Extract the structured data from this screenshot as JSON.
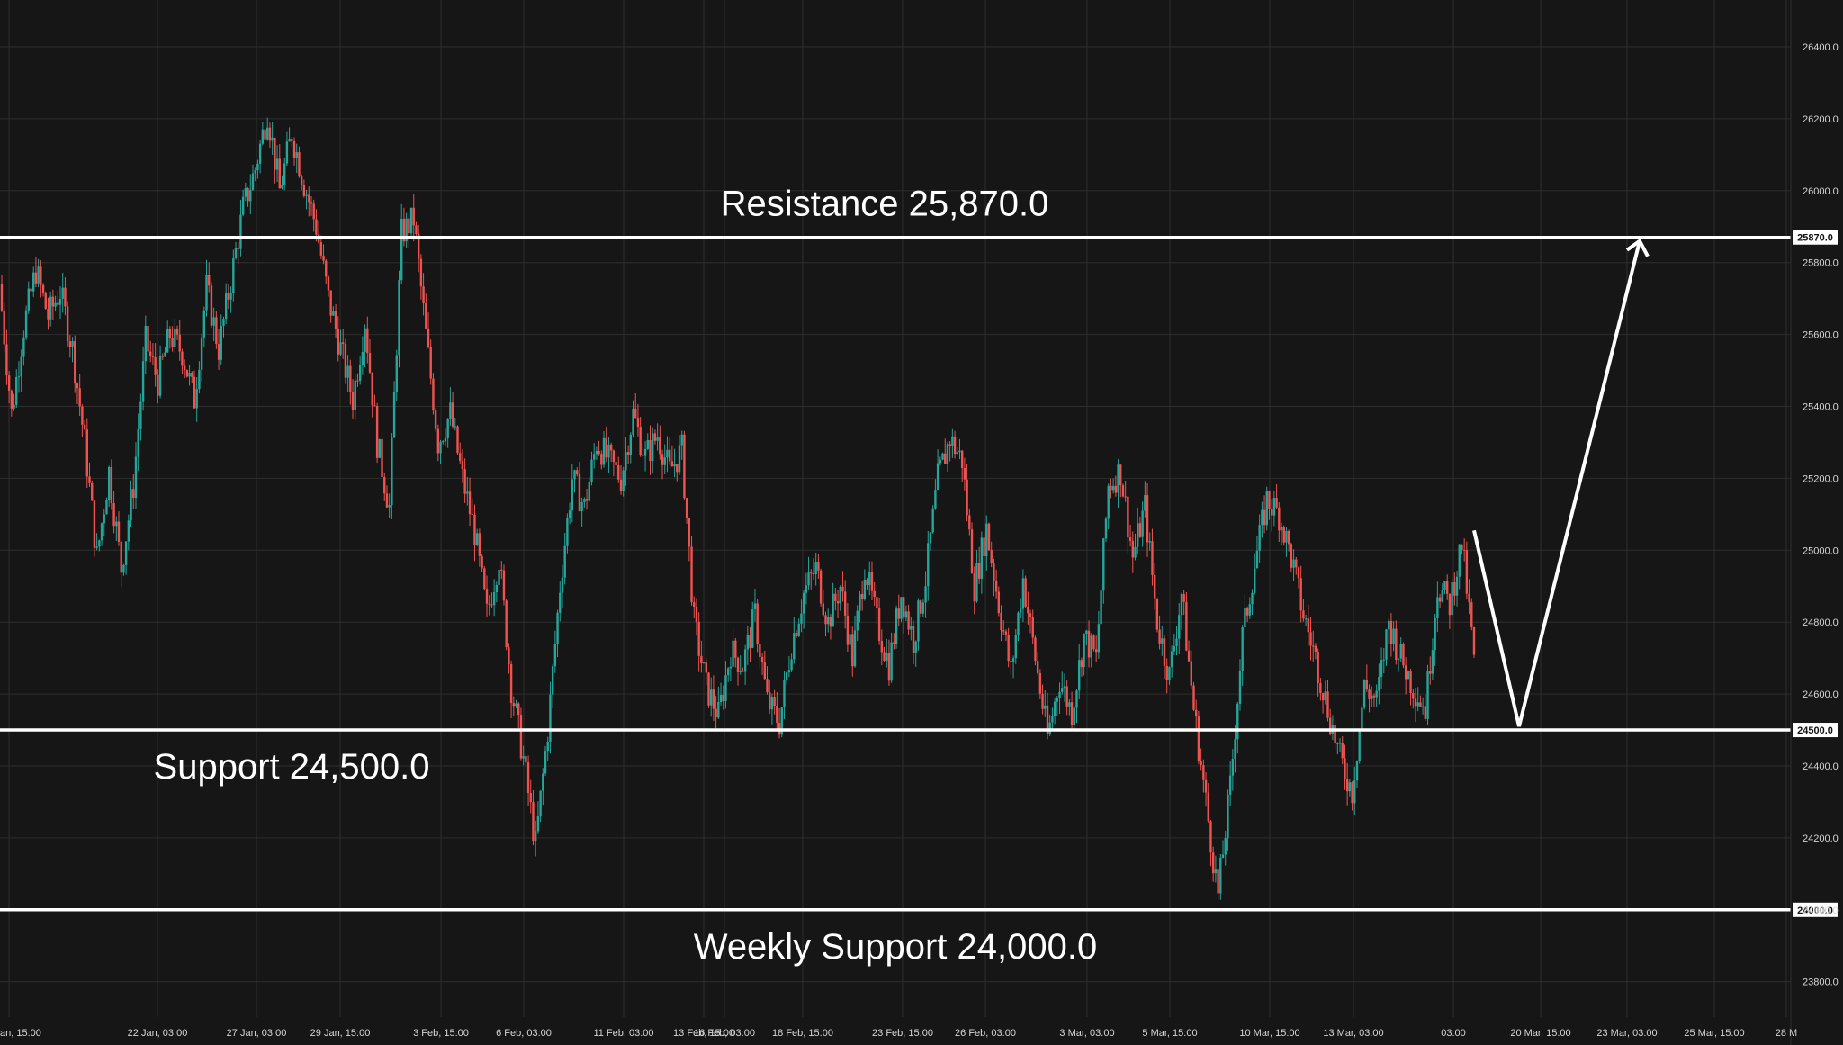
{
  "chart_data": {
    "type": "candlestick",
    "ylim": [
      23700,
      26600
    ],
    "y_ticks": [
      23800,
      24000,
      24200,
      24400,
      24600,
      24800,
      25000,
      25200,
      25400,
      25600,
      25800,
      26000,
      26200,
      26400
    ],
    "y_tick_labels": [
      "23800.0",
      "24000.0",
      "24200.0",
      "24400.0",
      "24600.0",
      "24800.0",
      "25000.0",
      "25200.0",
      "25400.0",
      "25600.0",
      "25800.0",
      "26000.0",
      "26200.0",
      "26400.0"
    ],
    "x_tick_labels": [
      "an, 15:00",
      "22 Jan, 03:00",
      "27 Jan, 03:00",
      "29 Jan, 15:00",
      "3 Feb, 15:00",
      "6 Feb, 03:00",
      "11 Feb, 03:00",
      "13 Feb, 15:00",
      "16 Feb, 03:00",
      "18 Feb, 15:00",
      "23 Feb, 15:00",
      "26 Feb, 03:00",
      "3 Mar, 03:00",
      "5 Mar, 15:00",
      "10 Mar, 15:00",
      "13 Mar, 03:00",
      "03:00",
      "20 Mar, 15:00",
      "23 Mar, 03:00",
      "25 Mar, 15:00",
      "28 M"
    ],
    "levels": [
      {
        "name": "Resistance",
        "text": "Resistance 25,870.0",
        "value": 25870,
        "badge": "25870.0"
      },
      {
        "name": "Support",
        "text": "Support 24,500.0",
        "value": 24500,
        "badge": "24500.0"
      },
      {
        "name": "Weekly Support",
        "text": "Weekly Support 24,000.0",
        "value": 24000,
        "badge": "24000.0"
      }
    ],
    "projection_path": [
      25055,
      24510,
      25860
    ],
    "price_path": [
      25740,
      25380,
      25620,
      25780,
      25650,
      25720,
      25560,
      25300,
      24980,
      25220,
      24950,
      25180,
      25580,
      25470,
      25600,
      25550,
      25420,
      25730,
      25560,
      25750,
      25950,
      26060,
      26220,
      26000,
      26160,
      26020,
      25900,
      25700,
      25560,
      25420,
      25640,
      25300,
      25120,
      25880,
      25920,
      25600,
      25300,
      25380,
      25200,
      25050,
      24820,
      24980,
      24620,
      24420,
      24180,
      24500,
      24900,
      25200,
      25120,
      25300,
      25250,
      25200,
      25380,
      25260,
      25320,
      25220,
      25280,
      24800,
      24620,
      24540,
      24720,
      24680,
      24820,
      24580,
      24520,
      24740,
      24880,
      24950,
      24800,
      24900,
      24700,
      24960,
      24800,
      24680,
      24880,
      24750,
      24920,
      25200,
      25310,
      25250,
      24900,
      25060,
      24850,
      24660,
      24920,
      24700,
      24480,
      24640,
      24550,
      24760,
      24700,
      25180,
      25220,
      24980,
      25120,
      24800,
      24650,
      24880,
      24560,
      24300,
      24040,
      24340,
      24760,
      24960,
      25140,
      25100,
      24980,
      24820,
      24700,
      24560,
      24420,
      24330,
      24620,
      24580,
      24800,
      24700,
      24620,
      24560,
      24900,
      24850,
      25020,
      24700
    ],
    "colors": {
      "background": "#161616",
      "grid": "#2e2e2e",
      "up": "#26a69a",
      "down": "#ef5350",
      "level_line": "#ffffff",
      "text": "#ffffff",
      "tick_text": "#d6d6d6"
    }
  }
}
